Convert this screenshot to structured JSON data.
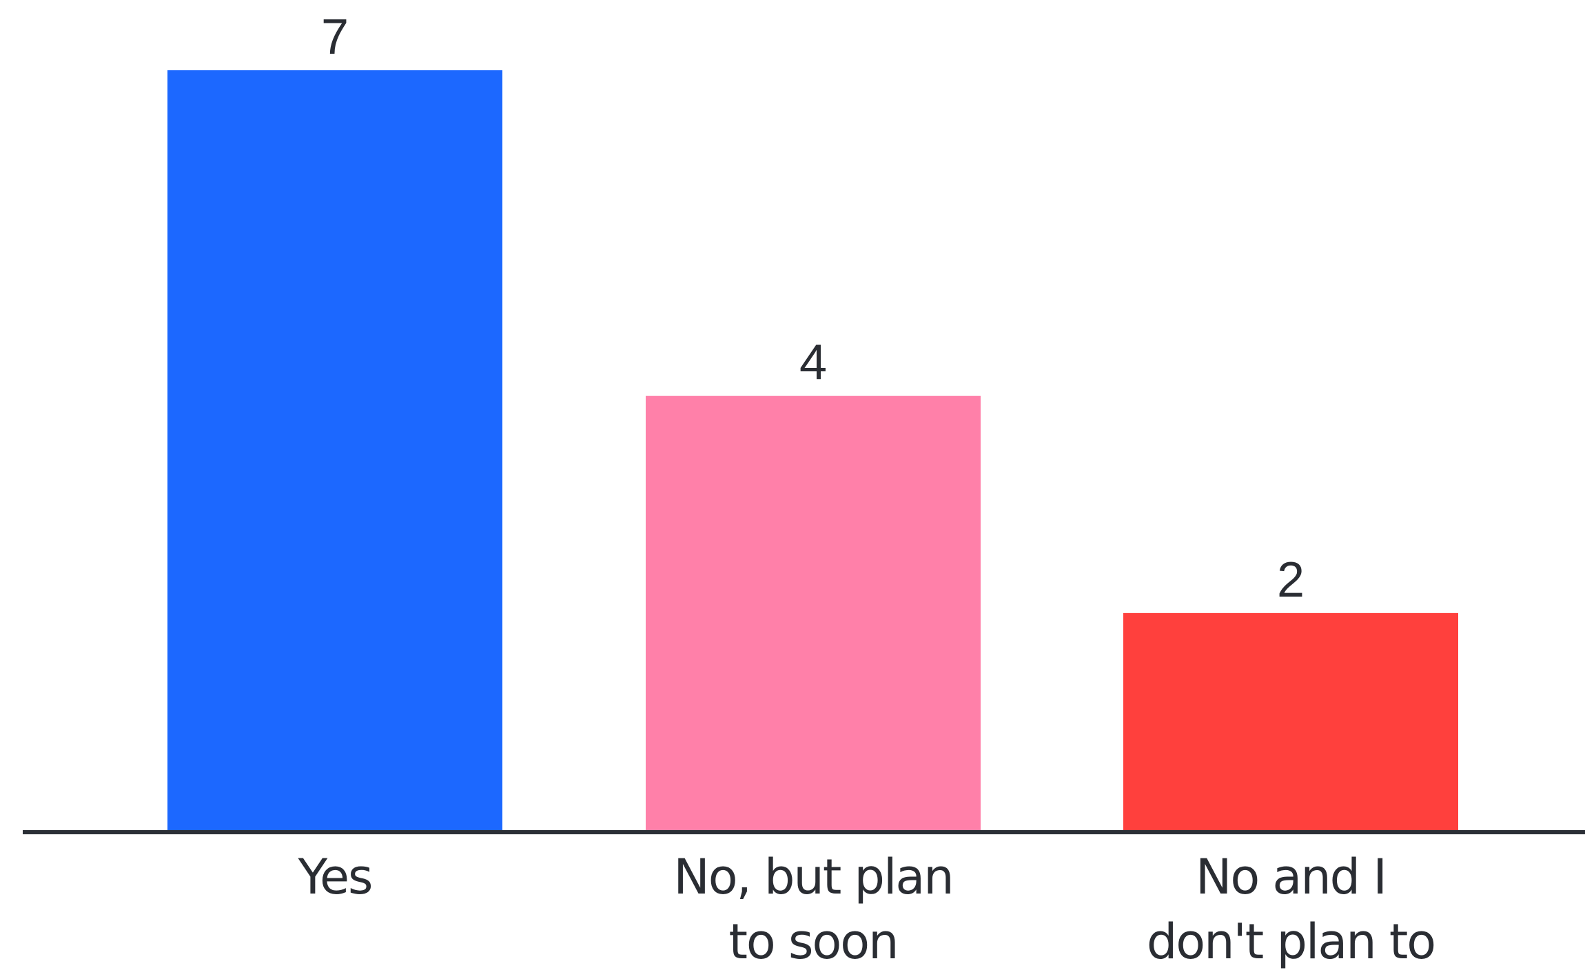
{
  "chart_data": {
    "type": "bar",
    "categories": [
      [
        "Yes"
      ],
      [
        "No, but plan",
        "to soon"
      ],
      [
        "No and I",
        "don't plan to"
      ]
    ],
    "values": [
      7,
      4,
      2
    ],
    "value_labels": [
      "7",
      "4",
      "2"
    ],
    "colors": [
      "#1c68ff",
      "#ff80a9",
      "#ff403d"
    ],
    "axis_color": "#2b2f36",
    "ylim": [
      0,
      7
    ],
    "grid": false,
    "title": "",
    "xlabel": "",
    "ylabel": ""
  }
}
